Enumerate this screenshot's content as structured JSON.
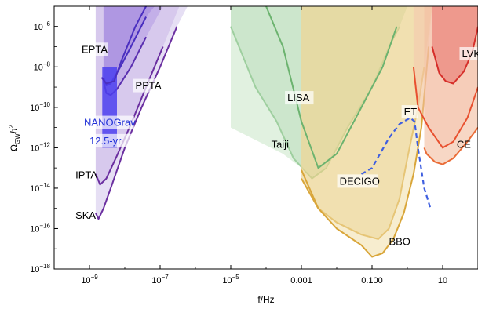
{
  "chart_data": {
    "type": "area",
    "xlabel": "f/Hz",
    "ylabel": "Ω_GW h²",
    "ylabel_parts": {
      "symbol": "Ω",
      "subscript": "GW",
      "h": "h",
      "sup": "2"
    },
    "x_scale": "log",
    "y_scale": "log",
    "xlim": [
      1e-10,
      100
    ],
    "ylim": [
      1e-18,
      1e-05
    ],
    "grid": false,
    "legend": "none",
    "x_ticks": [
      {
        "value": 1e-09,
        "base": "10",
        "exp": "−9"
      },
      {
        "value": 1e-07,
        "base": "10",
        "exp": "−7"
      },
      {
        "value": 1e-05,
        "base": "10",
        "exp": "−5"
      },
      {
        "value": 0.001,
        "text": "0.001"
      },
      {
        "value": 0.1,
        "text": "0.100"
      },
      {
        "value": 10,
        "text": "10"
      }
    ],
    "y_ticks": [
      {
        "value": 1e-06,
        "base": "10",
        "exp": "−6"
      },
      {
        "value": 1e-08,
        "base": "10",
        "exp": "−8"
      },
      {
        "value": 1e-10,
        "base": "10",
        "exp": "−10"
      },
      {
        "value": 1e-12,
        "base": "10",
        "exp": "−12"
      },
      {
        "value": 1e-14,
        "base": "10",
        "exp": "−14"
      },
      {
        "value": 1e-16,
        "base": "10",
        "exp": "−16"
      },
      {
        "value": 1e-18,
        "base": "10",
        "exp": "−18"
      }
    ],
    "regions": [
      {
        "name": "SKA",
        "fill": "#a78bd6",
        "opacity": 0.28,
        "stroke": "#6b2fa0",
        "stroke_width": 2,
        "points": [
          [
            1.5e-09,
            1e-05
          ],
          [
            1.5e-09,
            6e-16
          ],
          [
            1.8e-09,
            3e-16
          ],
          [
            2.5e-09,
            1e-15
          ],
          [
            4e-09,
            1e-14
          ],
          [
            1e-08,
            1e-12
          ],
          [
            3e-08,
            1e-10
          ],
          [
            1e-07,
            1e-08
          ],
          [
            3e-07,
            1e-06
          ],
          [
            6e-07,
            1e-05
          ]
        ]
      },
      {
        "name": "IPTA",
        "fill": "#b79be0",
        "opacity": 0.32,
        "stroke": "#6b2fa0",
        "stroke_width": 2,
        "points": [
          [
            1.5e-09,
            1e-05
          ],
          [
            1.5e-09,
            5e-14
          ],
          [
            2e-09,
            1.5e-14
          ],
          [
            3e-09,
            3e-14
          ],
          [
            6e-09,
            4e-13
          ],
          [
            1.5e-08,
            1.5e-11
          ],
          [
            4e-08,
            1e-09
          ],
          [
            1.2e-07,
            1e-07
          ],
          [
            3.5e-07,
            1e-05
          ]
        ]
      },
      {
        "name": "PPTA",
        "fill": "#9f7fe0",
        "opacity": 0.35,
        "stroke": "#5a2fb0",
        "stroke_width": 2,
        "points": [
          [
            2.5e-09,
            1e-05
          ],
          [
            2.5e-09,
            2e-09
          ],
          [
            3e-09,
            5e-10
          ],
          [
            4e-09,
            4e-10
          ],
          [
            6e-09,
            8e-10
          ],
          [
            1.5e-08,
            1e-08
          ],
          [
            4e-08,
            3e-07
          ],
          [
            1.2e-07,
            1e-05
          ]
        ]
      },
      {
        "name": "EPTA",
        "fill": "#8a6ad8",
        "opacity": 0.35,
        "stroke": "#4a2fc0",
        "stroke_width": 2,
        "points": [
          [
            2.5e-09,
            1e-05
          ],
          [
            2.5e-09,
            3e-09
          ],
          [
            3e-09,
            1.2e-09
          ],
          [
            4e-09,
            1.5e-09
          ],
          [
            7e-09,
            8e-09
          ],
          [
            1.5e-08,
            1e-07
          ],
          [
            4e-08,
            3e-06
          ],
          [
            7e-08,
            1e-05
          ]
        ]
      },
      {
        "name": "NANOGrav 12.5-yr",
        "fill": "#4c3fef",
        "opacity": 0.85,
        "stroke": "none",
        "stroke_width": 0,
        "points": [
          [
            2.3e-09,
            1e-08
          ],
          [
            6e-09,
            1e-08
          ],
          [
            6e-09,
            1e-12
          ],
          [
            2.3e-09,
            1e-12
          ]
        ]
      },
      {
        "name": "LISA",
        "fill": "#8cc48e",
        "opacity": 0.4,
        "stroke": "#6cb36f",
        "stroke_width": 2,
        "points": [
          [
            1e-05,
            1e-05
          ],
          [
            1e-05,
            1e-06
          ],
          [
            5e-05,
            1e-09
          ],
          [
            0.0002,
            2e-11
          ],
          [
            0.0006,
            3e-13
          ],
          [
            0.002,
            3e-14
          ],
          [
            0.005,
            1e-13
          ],
          [
            0.02,
            1e-11
          ],
          [
            0.1,
            1e-09
          ],
          [
            0.3,
            1e-07
          ],
          [
            0.6,
            1e-06
          ],
          [
            1,
            1e-05
          ]
        ]
      },
      {
        "name": "Taiji",
        "fill": "#c9e5c7",
        "opacity": 0.55,
        "stroke": "none",
        "stroke_width": 0,
        "points": [
          [
            1e-05,
            1e-05
          ],
          [
            1e-05,
            1e-11
          ],
          [
            0.0003,
            5e-13
          ],
          [
            0.002,
            4e-14
          ],
          [
            0.005,
            1e-13
          ],
          [
            0.02,
            1e-11
          ],
          [
            0.1,
            1e-09
          ],
          [
            0.3,
            1e-07
          ],
          [
            0.6,
            1e-06
          ],
          [
            1,
            1e-05
          ]
        ]
      },
      {
        "name": "DECIGO",
        "fill": "#e3c576",
        "opacity": 0.5,
        "stroke": "#d9a63a",
        "stroke_width": 2,
        "points": [
          [
            0.001,
            1e-05
          ],
          [
            0.001,
            3e-14
          ],
          [
            0.003,
            1e-15
          ],
          [
            0.01,
            2e-16
          ],
          [
            0.05,
            5e-17
          ],
          [
            0.15,
            3e-17
          ],
          [
            0.3,
            1e-16
          ],
          [
            0.6,
            3e-15
          ],
          [
            1,
            3e-13
          ],
          [
            2,
            1e-10
          ],
          [
            3,
            1e-08
          ],
          [
            5,
            1e-05
          ]
        ]
      },
      {
        "name": "BBO",
        "fill": "#f1dfa8",
        "opacity": 0.55,
        "stroke": "#d9a63a",
        "stroke_width": 2,
        "points": [
          [
            0.001,
            1e-05
          ],
          [
            0.001,
            8e-14
          ],
          [
            0.003,
            1e-15
          ],
          [
            0.01,
            1e-16
          ],
          [
            0.05,
            1.5e-17
          ],
          [
            0.1,
            4e-18
          ],
          [
            0.2,
            6e-18
          ],
          [
            0.4,
            3e-17
          ],
          [
            0.8,
            6e-16
          ],
          [
            1.5,
            5e-14
          ],
          [
            2.5,
            1e-11
          ],
          [
            4,
            1e-07
          ],
          [
            5,
            1e-05
          ]
        ]
      },
      {
        "name": "CE",
        "fill": "#f0b796",
        "opacity": 0.55,
        "stroke": "#ea6c37",
        "stroke_width": 2,
        "points": [
          [
            3,
            1e-05
          ],
          [
            3,
            1e-12
          ],
          [
            3.5,
            5e-13
          ],
          [
            6,
            2e-13
          ],
          [
            10,
            1.5e-13
          ],
          [
            20,
            3e-13
          ],
          [
            50,
            2e-12
          ],
          [
            100,
            1e-11
          ],
          [
            100,
            1e-05
          ]
        ]
      },
      {
        "name": "ET",
        "fill": "#f6c4ad",
        "opacity": 0.5,
        "stroke": "#e8502f",
        "stroke_width": 2,
        "points": [
          [
            1.5,
            1e-05
          ],
          [
            1.5,
            1e-08
          ],
          [
            2,
            1e-10
          ],
          [
            4,
            1e-11
          ],
          [
            10,
            1e-12
          ],
          [
            20,
            2e-12
          ],
          [
            50,
            3e-11
          ],
          [
            100,
            1e-09
          ],
          [
            100,
            1e-05
          ]
        ]
      },
      {
        "name": "LVK",
        "fill": "#e7706a",
        "opacity": 0.55,
        "stroke": "#d62f2a",
        "stroke_width": 2,
        "points": [
          [
            5,
            1e-05
          ],
          [
            5,
            1e-07
          ],
          [
            8,
            5e-09
          ],
          [
            12,
            2e-09
          ],
          [
            20,
            1.5e-09
          ],
          [
            40,
            6e-09
          ],
          [
            70,
            6e-08
          ],
          [
            100,
            1e-06
          ],
          [
            100,
            1e-05
          ]
        ]
      }
    ],
    "extra_lines": [
      {
        "name": "LISA-inner",
        "stroke": "#6cb36f",
        "width": 2,
        "dash": "",
        "points": [
          [
            0.0001,
            1e-05
          ],
          [
            0.0003,
            1e-07
          ],
          [
            0.001,
            2e-11
          ],
          [
            0.003,
            1e-13
          ],
          [
            0.01,
            5e-13
          ],
          [
            0.05,
            1e-10
          ],
          [
            0.2,
            1e-08
          ],
          [
            0.5,
            1e-06
          ]
        ]
      },
      {
        "name": "PTA-inner-1",
        "stroke": "#4a2fc0",
        "width": 2,
        "dash": "",
        "points": [
          [
            2.2e-09,
            3e-09
          ],
          [
            3e-09,
            1.5e-09
          ],
          [
            5e-09,
            2e-09
          ],
          [
            8e-09,
            2e-08
          ],
          [
            2e-08,
            1e-06
          ],
          [
            4e-08,
            1e-05
          ]
        ]
      },
      {
        "name": "Lab-dash",
        "stroke": "#3f5fe0",
        "width": 2.2,
        "dash": "6,4",
        "points": [
          [
            0.05,
            5e-14
          ],
          [
            0.1,
            1e-13
          ],
          [
            0.3,
            3e-12
          ],
          [
            0.6,
            1.5e-11
          ],
          [
            1.2,
            3e-11
          ],
          [
            1.6,
            2e-11
          ],
          [
            2,
            1e-12
          ],
          [
            3,
            1e-14
          ],
          [
            4.5,
            1e-15
          ]
        ]
      }
    ],
    "labels": [
      {
        "text": "EPTA",
        "x": 6e-10,
        "y": 5e-08,
        "color": "#000",
        "box": true
      },
      {
        "text": "PPTA",
        "x": 2e-08,
        "y": 8e-10,
        "color": "#000",
        "box": true
      },
      {
        "text": "NANOGrav",
        "x": 7e-10,
        "y": 1.2e-11,
        "color": "#1f2fd6",
        "box": true
      },
      {
        "text": "12.5-yr",
        "x": 1e-09,
        "y": 1.5e-12,
        "color": "#1f2fd6",
        "box": true
      },
      {
        "text": "IPTA",
        "x": 4e-10,
        "y": 3e-14,
        "color": "#000",
        "box": false
      },
      {
        "text": "SKA",
        "x": 4e-10,
        "y": 3e-16,
        "color": "#000",
        "box": false
      },
      {
        "text": "LISA",
        "x": 0.0004,
        "y": 2e-10,
        "color": "#000",
        "box": true
      },
      {
        "text": "Taiji",
        "x": 0.00014,
        "y": 1e-12,
        "color": "#000",
        "box": false
      },
      {
        "text": "DECIGO",
        "x": 0.012,
        "y": 1.5e-14,
        "color": "#000",
        "box": true
      },
      {
        "text": "BBO",
        "x": 0.3,
        "y": 1.5e-17,
        "color": "#000",
        "box": false
      },
      {
        "text": "ET",
        "x": 0.8,
        "y": 4e-11,
        "color": "#000",
        "box": true
      },
      {
        "text": "CE",
        "x": 25,
        "y": 1e-12,
        "color": "#000",
        "box": false
      },
      {
        "text": "LVK",
        "x": 35,
        "y": 3e-08,
        "color": "#000",
        "box": true
      }
    ]
  }
}
